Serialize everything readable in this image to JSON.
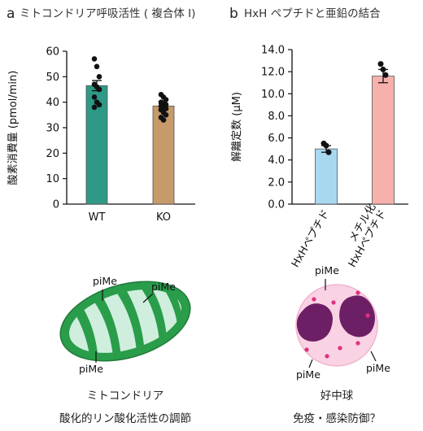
{
  "panel_a": {
    "letter": "a",
    "title": "ミトコンドリア呼吸活性 ( 複合体 I)",
    "caption_line1": "ミトコンドリア",
    "caption_line2": "酸化的リン酸化活性の調節",
    "pime_labels": [
      "piMe",
      "piMe",
      "piMe"
    ]
  },
  "panel_b": {
    "letter": "b",
    "title": "HxH ペプチドと亜鉛の結合",
    "caption_line1": "好中球",
    "caption_line2": "免疫・感染防御？",
    "pime_labels": [
      "piMe",
      "piMe",
      "piMe"
    ]
  },
  "chart_data": [
    {
      "type": "bar",
      "title": "ミトコンドリア呼吸活性 ( 複合体 I)",
      "ylabel": "酸素消費量 (pmol/min)",
      "xlabel": "",
      "ylim": [
        0,
        60
      ],
      "yticks": [
        "0",
        "10",
        "20",
        "30",
        "40",
        "50",
        "60"
      ],
      "categories": [
        "WT",
        "KO"
      ],
      "values": [
        46.5,
        38.5
      ],
      "errors": [
        2.0,
        1.0
      ],
      "bar_colors": [
        "#2e9a86",
        "#c69a6a"
      ],
      "points": [
        [
          57,
          54,
          50,
          47,
          46,
          45,
          42,
          40,
          39,
          38
        ],
        [
          43,
          42,
          41,
          40,
          39.5,
          39,
          38.5,
          38,
          37.5,
          37,
          36,
          35,
          34,
          33
        ]
      ],
      "grid": false
    },
    {
      "type": "bar",
      "title": "HxH ペプチドと亜鉛の結合",
      "ylabel": "解離定数 (μM)",
      "xlabel": "",
      "ylim": [
        0,
        14
      ],
      "yticks": [
        "0.0",
        "2.0",
        "4.0",
        "6.0",
        "8.0",
        "10.0",
        "12.0",
        "14.0"
      ],
      "categories": [
        "HxHペプチド",
        "メチル化 HxHペプチド"
      ],
      "category_lines": [
        [
          "HxHペプチド"
        ],
        [
          "メチル化",
          "HxHペプチド"
        ]
      ],
      "values": [
        5.0,
        11.6
      ],
      "errors": [
        0.3,
        0.6
      ],
      "bar_colors": [
        "#a8d8f0",
        "#f7b1ac"
      ],
      "points": [
        [
          5.5,
          5.3,
          4.7
        ],
        [
          12.7,
          12.2,
          11.7
        ]
      ],
      "grid": false
    }
  ]
}
